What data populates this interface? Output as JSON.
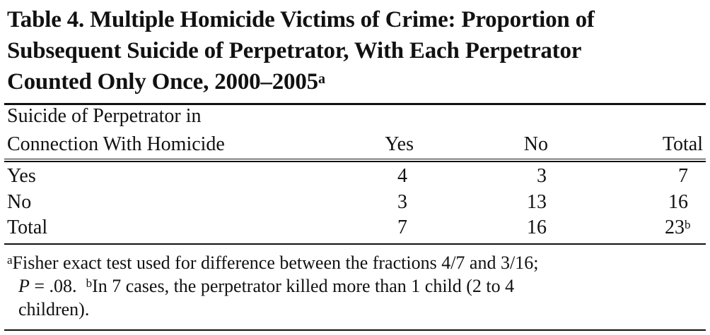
{
  "title": {
    "lines": [
      "Table 4. Multiple Homicide Victims of Crime: Proportion of",
      "Subsequent Suicide of Perpetrator, With Each Perpetrator",
      "Counted Only Once, 2000–2005"
    ],
    "footnote_mark": "a"
  },
  "table": {
    "row_header": [
      "Suicide of Perpetrator in",
      "Connection With Homicide"
    ],
    "columns": [
      "Yes",
      "No",
      "Total"
    ],
    "rows": [
      {
        "label": "Yes",
        "values": [
          "4",
          "3",
          "7"
        ]
      },
      {
        "label": "No",
        "values": [
          "3",
          "13",
          "16"
        ]
      },
      {
        "label": "Total",
        "values": [
          "7",
          "16",
          "23"
        ]
      }
    ],
    "total_footnote_mark": "b"
  },
  "footnotes": {
    "a_mark": "a",
    "a_line1": "Fisher exact test used for difference between the fractions 4/7 and 3/16;",
    "a_p": "P",
    "a_pval": " = .08.",
    "b_mark": "b",
    "b_line1": "In 7 cases, the perpetrator killed more than 1 child (2 to 4",
    "b_line2": "children)."
  }
}
